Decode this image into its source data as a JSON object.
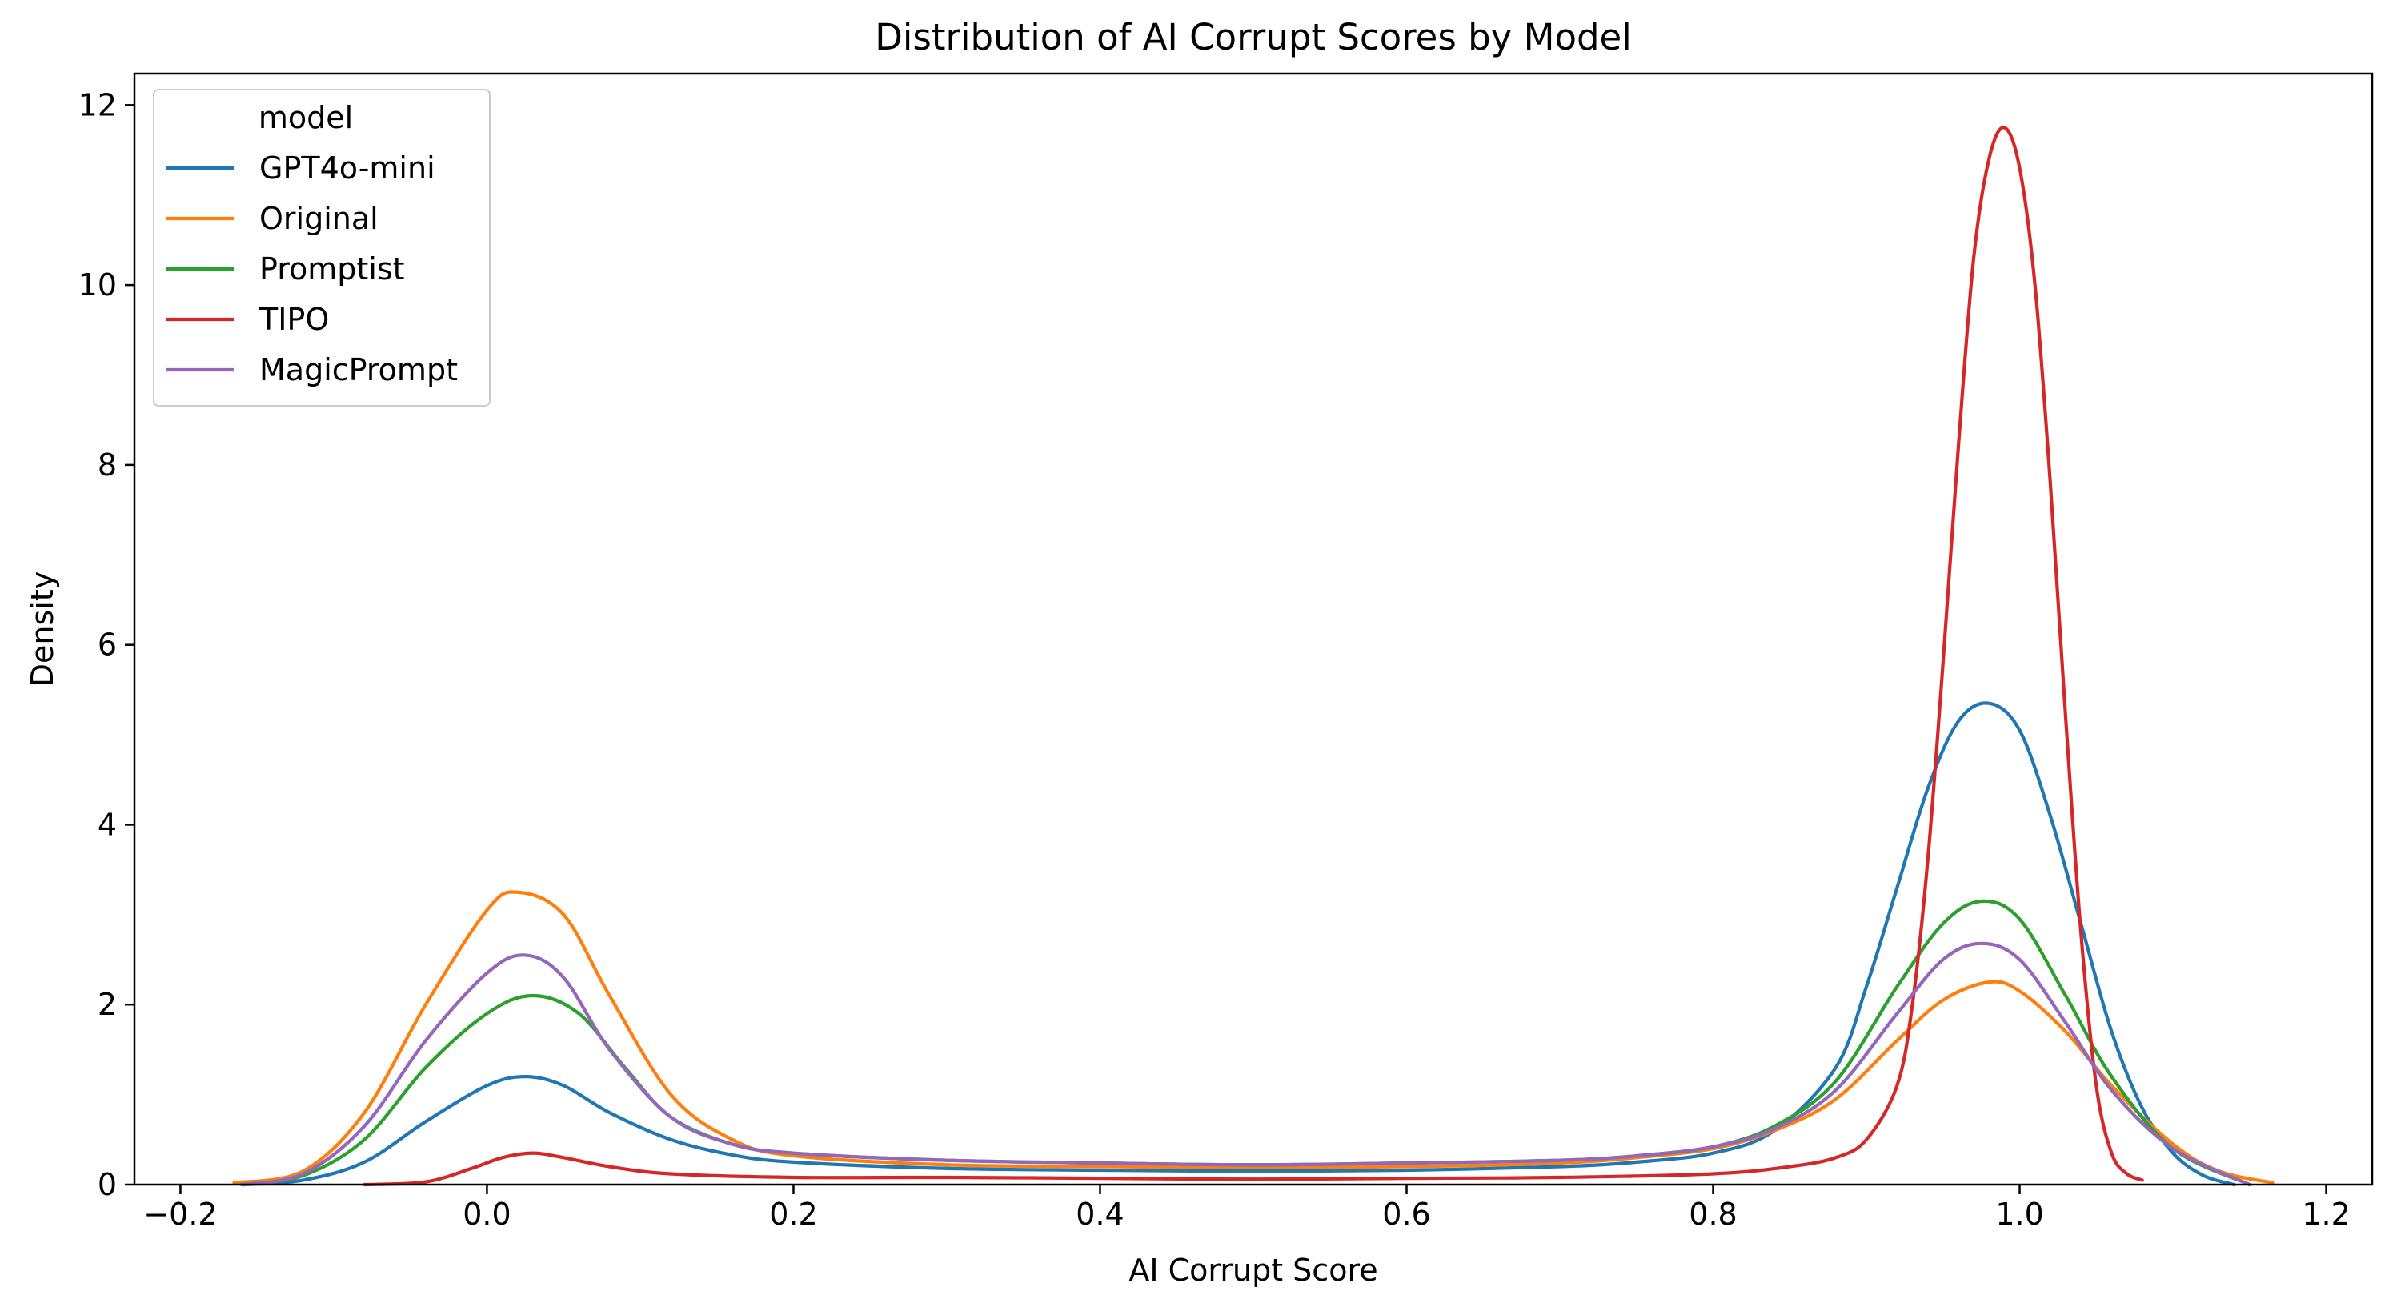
{
  "chart_data": {
    "type": "line",
    "title": "Distribution of AI Corrupt Scores by Model",
    "xlabel": "AI Corrupt Score",
    "ylabel": "Density",
    "xlim": [
      -0.23,
      1.23
    ],
    "ylim": [
      0,
      12.35
    ],
    "xticks": [
      -0.2,
      0.0,
      0.2,
      0.4,
      0.6,
      0.8,
      1.0,
      1.2
    ],
    "xtick_labels": [
      "−0.2",
      "0.0",
      "0.2",
      "0.4",
      "0.6",
      "0.8",
      "1.0",
      "1.2"
    ],
    "yticks": [
      0,
      2,
      4,
      6,
      8,
      10,
      12
    ],
    "ytick_labels": [
      "0",
      "2",
      "4",
      "6",
      "8",
      "10",
      "12"
    ],
    "grid": false,
    "legend": {
      "title": "model",
      "placement": "top-left"
    },
    "series": [
      {
        "name": "GPT4o-mini",
        "color": "#1f77b4",
        "x": [
          -0.16,
          -0.12,
          -0.08,
          -0.04,
          0.0,
          0.025,
          0.05,
          0.08,
          0.12,
          0.16,
          0.2,
          0.3,
          0.4,
          0.5,
          0.6,
          0.7,
          0.75,
          0.8,
          0.84,
          0.88,
          0.9,
          0.92,
          0.94,
          0.96,
          0.98,
          1.0,
          1.02,
          1.04,
          1.06,
          1.08,
          1.1,
          1.12,
          1.14
        ],
        "y": [
          0.0,
          0.05,
          0.25,
          0.7,
          1.1,
          1.2,
          1.1,
          0.8,
          0.5,
          0.33,
          0.25,
          0.18,
          0.16,
          0.15,
          0.16,
          0.2,
          0.25,
          0.35,
          0.6,
          1.3,
          2.2,
          3.3,
          4.4,
          5.15,
          5.35,
          5.05,
          4.1,
          2.9,
          1.7,
          0.85,
          0.35,
          0.1,
          0.0
        ]
      },
      {
        "name": "Original",
        "color": "#ff7f0e",
        "x": [
          -0.165,
          -0.12,
          -0.08,
          -0.04,
          0.0,
          0.02,
          0.05,
          0.08,
          0.12,
          0.16,
          0.2,
          0.3,
          0.4,
          0.5,
          0.6,
          0.7,
          0.75,
          0.8,
          0.84,
          0.88,
          0.92,
          0.95,
          0.98,
          1.0,
          1.03,
          1.06,
          1.1,
          1.13,
          1.165
        ],
        "y": [
          0.02,
          0.15,
          0.8,
          2.0,
          3.05,
          3.25,
          3.0,
          2.1,
          1.0,
          0.5,
          0.32,
          0.22,
          0.2,
          0.19,
          0.2,
          0.24,
          0.3,
          0.4,
          0.6,
          0.95,
          1.6,
          2.05,
          2.25,
          2.15,
          1.7,
          1.1,
          0.45,
          0.15,
          0.02
        ]
      },
      {
        "name": "Promptist",
        "color": "#2ca02c",
        "x": [
          -0.16,
          -0.12,
          -0.08,
          -0.04,
          0.0,
          0.03,
          0.06,
          0.09,
          0.12,
          0.16,
          0.2,
          0.3,
          0.4,
          0.5,
          0.6,
          0.7,
          0.75,
          0.8,
          0.84,
          0.88,
          0.92,
          0.95,
          0.975,
          1.0,
          1.03,
          1.06,
          1.1,
          1.15
        ],
        "y": [
          0.0,
          0.1,
          0.5,
          1.3,
          1.9,
          2.1,
          1.9,
          1.3,
          0.75,
          0.45,
          0.35,
          0.27,
          0.24,
          0.22,
          0.24,
          0.27,
          0.32,
          0.42,
          0.65,
          1.15,
          2.2,
          2.9,
          3.15,
          2.95,
          2.1,
          1.2,
          0.4,
          0.0
        ]
      },
      {
        "name": "TIPO",
        "color": "#d62728",
        "x": [
          -0.08,
          -0.04,
          -0.01,
          0.01,
          0.03,
          0.05,
          0.08,
          0.12,
          0.2,
          0.3,
          0.4,
          0.5,
          0.6,
          0.7,
          0.8,
          0.85,
          0.88,
          0.9,
          0.92,
          0.93,
          0.94,
          0.95,
          0.96,
          0.97,
          0.98,
          0.99,
          1.0,
          1.01,
          1.02,
          1.03,
          1.04,
          1.05,
          1.06,
          1.07,
          1.08
        ],
        "y": [
          0.0,
          0.03,
          0.18,
          0.3,
          0.35,
          0.3,
          0.2,
          0.12,
          0.08,
          0.08,
          0.07,
          0.06,
          0.07,
          0.08,
          0.12,
          0.2,
          0.3,
          0.5,
          1.1,
          2.0,
          3.6,
          5.8,
          8.2,
          10.3,
          11.4,
          11.75,
          11.3,
          10.0,
          7.8,
          5.2,
          2.8,
          1.1,
          0.35,
          0.12,
          0.05
        ]
      },
      {
        "name": "MagicPrompt",
        "color": "#9467bd",
        "x": [
          -0.16,
          -0.12,
          -0.08,
          -0.04,
          0.0,
          0.025,
          0.05,
          0.08,
          0.12,
          0.16,
          0.2,
          0.3,
          0.4,
          0.5,
          0.6,
          0.7,
          0.75,
          0.8,
          0.84,
          0.88,
          0.92,
          0.95,
          0.975,
          1.0,
          1.03,
          1.06,
          1.1,
          1.15
        ],
        "y": [
          0.0,
          0.12,
          0.65,
          1.6,
          2.35,
          2.55,
          2.3,
          1.5,
          0.75,
          0.45,
          0.35,
          0.27,
          0.24,
          0.22,
          0.24,
          0.27,
          0.32,
          0.42,
          0.62,
          1.05,
          1.9,
          2.5,
          2.68,
          2.5,
          1.8,
          1.05,
          0.4,
          0.0
        ]
      }
    ]
  }
}
